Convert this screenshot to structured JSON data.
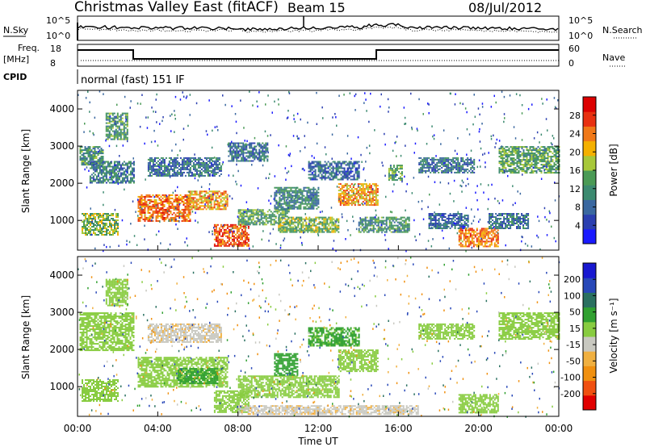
{
  "header": {
    "title": "Christmas Valley East (fitACF)",
    "beam": "Beam 15",
    "date": "08/Jul/2012"
  },
  "top_panels": {
    "nsky_label": "N.Sky",
    "nsearch_label": "N.Search",
    "left_ticks": [
      "10^5",
      "10^0"
    ],
    "right_ticks": [
      "10^5",
      "10^0"
    ],
    "freq_label_1": "Freq.",
    "freq_label_2": "[MHz]",
    "freq_ticks": [
      "18",
      "8"
    ],
    "nave_label": "Nave",
    "nave_ticks": [
      "60",
      "0"
    ],
    "cpid_label": "CPID",
    "cpid_text": "normal (fast) 151 IF"
  },
  "colors": {
    "power": [
      "#1a1aff",
      "#2b3fb0",
      "#3a68a0",
      "#3c8a70",
      "#4a9a55",
      "#a8c83a",
      "#f4b000",
      "#f07818",
      "#e83010",
      "#dc0000"
    ],
    "velocity": [
      "#e00000",
      "#f05010",
      "#f09010",
      "#f0b040",
      "#c8c8c0",
      "#88cc40",
      "#30a030",
      "#2a7060",
      "#2848b8",
      "#1818d0"
    ]
  },
  "chart_data": [
    {
      "type": "heatmap",
      "name": "power",
      "ylabel": "Slant Range [km]",
      "yticks": [
        "1000",
        "2000",
        "3000",
        "4000"
      ],
      "ylim": [
        200,
        4500
      ],
      "xlim": [
        0,
        24
      ],
      "colorbar_label": "Power [dB]",
      "colorbar_ticks": [
        "4",
        "8",
        "12",
        "16",
        "20",
        "24",
        "28"
      ],
      "colorbar_range": [
        0,
        32
      ],
      "regions": [
        {
          "t0": 0.1,
          "t1": 1.3,
          "r0": 2500,
          "r1": 3000,
          "v": 12
        },
        {
          "t0": 0.6,
          "t1": 2.8,
          "r0": 2000,
          "r1": 2600,
          "v": 10
        },
        {
          "t0": 1.4,
          "t1": 2.5,
          "r0": 3200,
          "r1": 3900,
          "v": 13
        },
        {
          "t0": 0.2,
          "t1": 2.0,
          "r0": 600,
          "r1": 1200,
          "v": 16
        },
        {
          "t0": 3.0,
          "t1": 5.6,
          "r0": 1000,
          "r1": 1700,
          "v": 24
        },
        {
          "t0": 5.5,
          "t1": 7.5,
          "r0": 1300,
          "r1": 1800,
          "v": 22
        },
        {
          "t0": 6.8,
          "t1": 8.5,
          "r0": 300,
          "r1": 900,
          "v": 26
        },
        {
          "t0": 3.5,
          "t1": 7.2,
          "r0": 2200,
          "r1": 2700,
          "v": 9
        },
        {
          "t0": 7.5,
          "t1": 9.5,
          "r0": 2600,
          "r1": 3100,
          "v": 9
        },
        {
          "t0": 8.0,
          "t1": 10.5,
          "r0": 900,
          "r1": 1300,
          "v": 14
        },
        {
          "t0": 9.8,
          "t1": 12.0,
          "r0": 1300,
          "r1": 1900,
          "v": 11
        },
        {
          "t0": 10.0,
          "t1": 13.0,
          "r0": 700,
          "r1": 1100,
          "v": 16
        },
        {
          "t0": 11.5,
          "t1": 14.0,
          "r0": 2100,
          "r1": 2600,
          "v": 8
        },
        {
          "t0": 13.0,
          "t1": 15.0,
          "r0": 1400,
          "r1": 2000,
          "v": 22
        },
        {
          "t0": 14.0,
          "t1": 16.5,
          "r0": 700,
          "r1": 1100,
          "v": 12
        },
        {
          "t0": 15.5,
          "t1": 16.2,
          "r0": 2100,
          "r1": 2500,
          "v": 14
        },
        {
          "t0": 17.0,
          "t1": 19.8,
          "r0": 2300,
          "r1": 2700,
          "v": 9
        },
        {
          "t0": 17.5,
          "t1": 19.5,
          "r0": 800,
          "r1": 1200,
          "v": 8
        },
        {
          "t0": 19.0,
          "t1": 21.0,
          "r0": 300,
          "r1": 800,
          "v": 24
        },
        {
          "t0": 21.0,
          "t1": 24.0,
          "r0": 2300,
          "r1": 3000,
          "v": 14
        },
        {
          "t0": 20.5,
          "t1": 22.5,
          "r0": 800,
          "r1": 1200,
          "v": 9
        }
      ]
    },
    {
      "type": "heatmap",
      "name": "velocity",
      "ylabel": "Slant Range [km]",
      "yticks": [
        "1000",
        "2000",
        "3000",
        "4000"
      ],
      "ylim": [
        200,
        4500
      ],
      "xlim": [
        0,
        24
      ],
      "xlabel": "Time UT",
      "xticks": [
        "00:00",
        "04:00",
        "08:00",
        "12:00",
        "16:00",
        "20:00",
        "00:00"
      ],
      "colorbar_label": "Velocity [m s⁻¹]",
      "colorbar_ticks": [
        "-200",
        "-100",
        "-50",
        "-15",
        "15",
        "50",
        "100",
        "200"
      ],
      "regions": [
        {
          "t0": 0.1,
          "t1": 2.8,
          "r0": 2000,
          "r1": 3000,
          "v": 0
        },
        {
          "t0": 0.2,
          "t1": 2.0,
          "r0": 600,
          "r1": 1200,
          "v": 0
        },
        {
          "t0": 1.4,
          "t1": 2.5,
          "r0": 3200,
          "r1": 3900,
          "v": 0
        },
        {
          "t0": 3.0,
          "t1": 7.5,
          "r0": 1000,
          "r1": 1800,
          "v": 0
        },
        {
          "t0": 3.5,
          "t1": 7.2,
          "r0": 2200,
          "r1": 2700,
          "v": -40
        },
        {
          "t0": 5.0,
          "t1": 7.0,
          "r0": 1100,
          "r1": 1500,
          "v": 30
        },
        {
          "t0": 6.8,
          "t1": 8.5,
          "r0": 300,
          "r1": 900,
          "v": 0
        },
        {
          "t0": 8.0,
          "t1": 13.0,
          "r0": 700,
          "r1": 1300,
          "v": 0
        },
        {
          "t0": 9.8,
          "t1": 11.0,
          "r0": 1300,
          "r1": 1900,
          "v": 30
        },
        {
          "t0": 11.5,
          "t1": 14.0,
          "r0": 2100,
          "r1": 2600,
          "v": 25
        },
        {
          "t0": 13.0,
          "t1": 15.0,
          "r0": 1400,
          "r1": 2000,
          "v": 0
        },
        {
          "t0": 8.0,
          "t1": 17.0,
          "r0": 250,
          "r1": 500,
          "v": -40
        },
        {
          "t0": 17.0,
          "t1": 19.8,
          "r0": 2300,
          "r1": 2700,
          "v": 0
        },
        {
          "t0": 19.0,
          "t1": 21.0,
          "r0": 300,
          "r1": 800,
          "v": 0
        },
        {
          "t0": 21.0,
          "t1": 24.0,
          "r0": 2300,
          "r1": 3000,
          "v": 0
        }
      ]
    }
  ]
}
